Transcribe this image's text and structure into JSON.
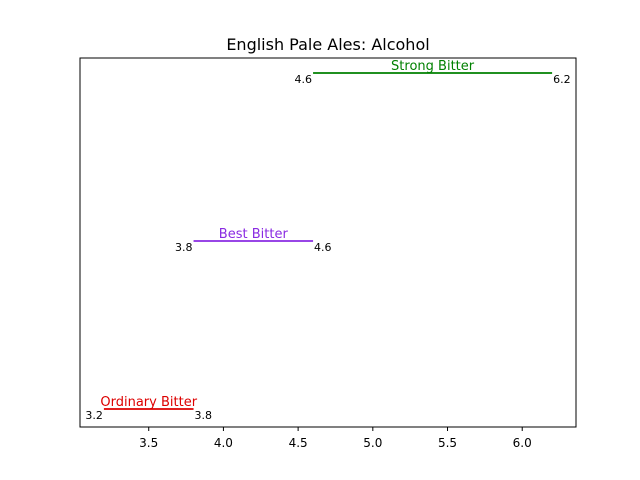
{
  "chart_data": {
    "type": "range",
    "title": "English Pale Ales: Alcohol",
    "xlabel": "",
    "ylabel": "",
    "xlim": [
      3.04,
      6.36
    ],
    "x_ticks": [
      3.5,
      4.0,
      4.5,
      5.0,
      5.5,
      6.0
    ],
    "x_tick_labels": [
      "3.5",
      "4.0",
      "4.5",
      "5.0",
      "5.5",
      "6.0"
    ],
    "y_ticks_visible": false,
    "grid": false,
    "series": [
      {
        "name": "Ordinary Bitter",
        "min": 3.2,
        "max": 3.8,
        "min_label": "3.2",
        "max_label": "3.8",
        "color": "#dd0000"
      },
      {
        "name": "Best Bitter",
        "min": 3.8,
        "max": 4.6,
        "min_label": "3.8",
        "max_label": "4.6",
        "color": "#8a2be2"
      },
      {
        "name": "Strong Bitter",
        "min": 4.6,
        "max": 6.2,
        "min_label": "4.6",
        "max_label": "6.2",
        "color": "#008000"
      }
    ]
  }
}
